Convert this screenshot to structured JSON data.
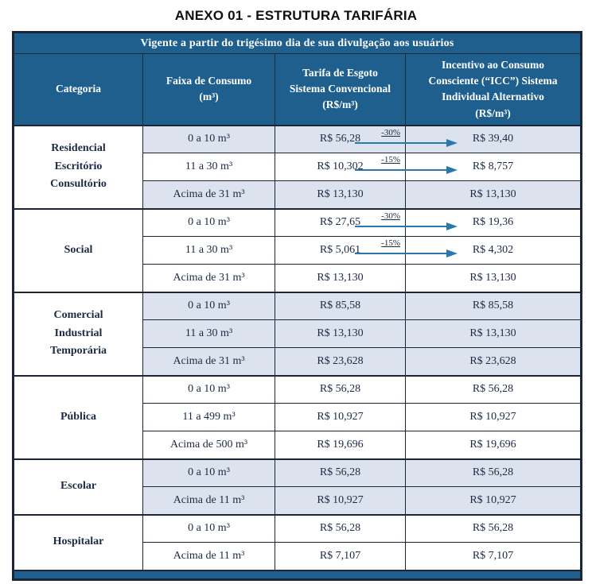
{
  "title": "ANEXO 01 - ESTRUTURA TARIFÁRIA",
  "theme": {
    "header_blue": "#1e5f8e",
    "border": "#1c2636",
    "shaded_row": "#dde3ee",
    "ink": "#1c2a44",
    "arrow_blue": "#2878ae"
  },
  "table": {
    "banner": "Vigente a partir do trigésimo dia de sua divulgação aos usuários",
    "headers": {
      "categoria": "Categoria",
      "faixa": "Faixa de Consumo\n(m³)",
      "tarifa": "Tarifa de Esgoto\nSistema Convencional\n(R$/m³)",
      "icc": "Incentivo ao Consumo\nConsciente (“ICC”) Sistema\nIndividual Alternativo\n(R$/m³)"
    },
    "groups": [
      {
        "categoria": "Residencial\nEscritório\nConsultório",
        "rows": [
          {
            "faixa": "0 a 10 m³",
            "tarifa": "R$ 56,28",
            "discount": "-30%",
            "icc": "R$ 39,40",
            "shaded": true
          },
          {
            "faixa": "11 a 30 m³",
            "tarifa": "R$ 10,302",
            "discount": "-15%",
            "icc": "R$ 8,757",
            "shaded": false
          },
          {
            "faixa": "Acima de 31 m³",
            "tarifa": "R$ 13,130",
            "icc": "R$ 13,130",
            "shaded": true
          }
        ]
      },
      {
        "categoria": "Social",
        "rows": [
          {
            "faixa": "0 a 10 m³",
            "tarifa": "R$ 27,65",
            "discount": "-30%",
            "icc": "R$ 19,36",
            "shaded": false
          },
          {
            "faixa": "11 a 30 m³",
            "tarifa": "R$ 5,061",
            "discount": "-15%",
            "icc": "R$ 4,302",
            "shaded": false
          },
          {
            "faixa": "Acima de 31 m³",
            "tarifa": "R$ 13,130",
            "icc": "R$ 13,130",
            "shaded": false
          }
        ]
      },
      {
        "categoria": "Comercial\nIndustrial\nTemporária",
        "rows": [
          {
            "faixa": "0 a 10 m³",
            "tarifa": "R$ 85,58",
            "icc": "R$ 85,58",
            "shaded": true
          },
          {
            "faixa": "11 a 30 m³",
            "tarifa": "R$ 13,130",
            "icc": "R$ 13,130",
            "shaded": true
          },
          {
            "faixa": "Acima de 31 m³",
            "tarifa": "R$ 23,628",
            "icc": "R$ 23,628",
            "shaded": true
          }
        ]
      },
      {
        "categoria": "Pública",
        "rows": [
          {
            "faixa": "0 a 10 m³",
            "tarifa": "R$ 56,28",
            "icc": "R$ 56,28",
            "shaded": false
          },
          {
            "faixa": "11 a 499 m³",
            "tarifa": "R$ 10,927",
            "icc": "R$ 10,927",
            "shaded": false
          },
          {
            "faixa": "Acima de 500 m³",
            "tarifa": "R$ 19,696",
            "icc": "R$ 19,696",
            "shaded": false
          }
        ]
      },
      {
        "categoria": "Escolar",
        "rows": [
          {
            "faixa": "0 a 10 m³",
            "tarifa": "R$ 56,28",
            "icc": "R$ 56,28",
            "shaded": true
          },
          {
            "faixa": "Acima de 11 m³",
            "tarifa": "R$ 10,927",
            "icc": "R$ 10,927",
            "shaded": true
          }
        ]
      },
      {
        "categoria": "Hospitalar",
        "rows": [
          {
            "faixa": "0 a 10 m³",
            "tarifa": "R$ 56,28",
            "icc": "R$ 56,28",
            "shaded": false
          },
          {
            "faixa": "Acima de 11 m³",
            "tarifa": "R$ 7,107",
            "icc": "R$ 7,107",
            "shaded": false
          }
        ]
      }
    ]
  }
}
